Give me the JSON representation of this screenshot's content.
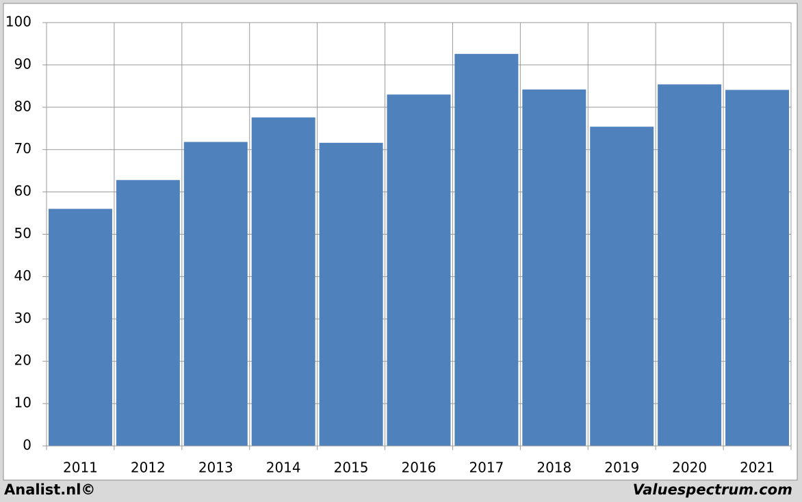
{
  "chart_data": {
    "type": "bar",
    "categories": [
      "2011",
      "2012",
      "2013",
      "2014",
      "2015",
      "2016",
      "2017",
      "2018",
      "2019",
      "2020",
      "2021"
    ],
    "values": [
      56,
      62.8,
      71.8,
      77.6,
      71.6,
      83,
      92.6,
      84.2,
      75.4,
      85.4,
      84.1
    ],
    "color": "#4f81bd",
    "ylim": [
      0,
      100
    ],
    "yticks": [
      0,
      10,
      20,
      30,
      40,
      50,
      60,
      70,
      80,
      90,
      100
    ],
    "grid": true,
    "annotations": [
      "Analist.nl©",
      "Valuespectrum.com"
    ]
  }
}
